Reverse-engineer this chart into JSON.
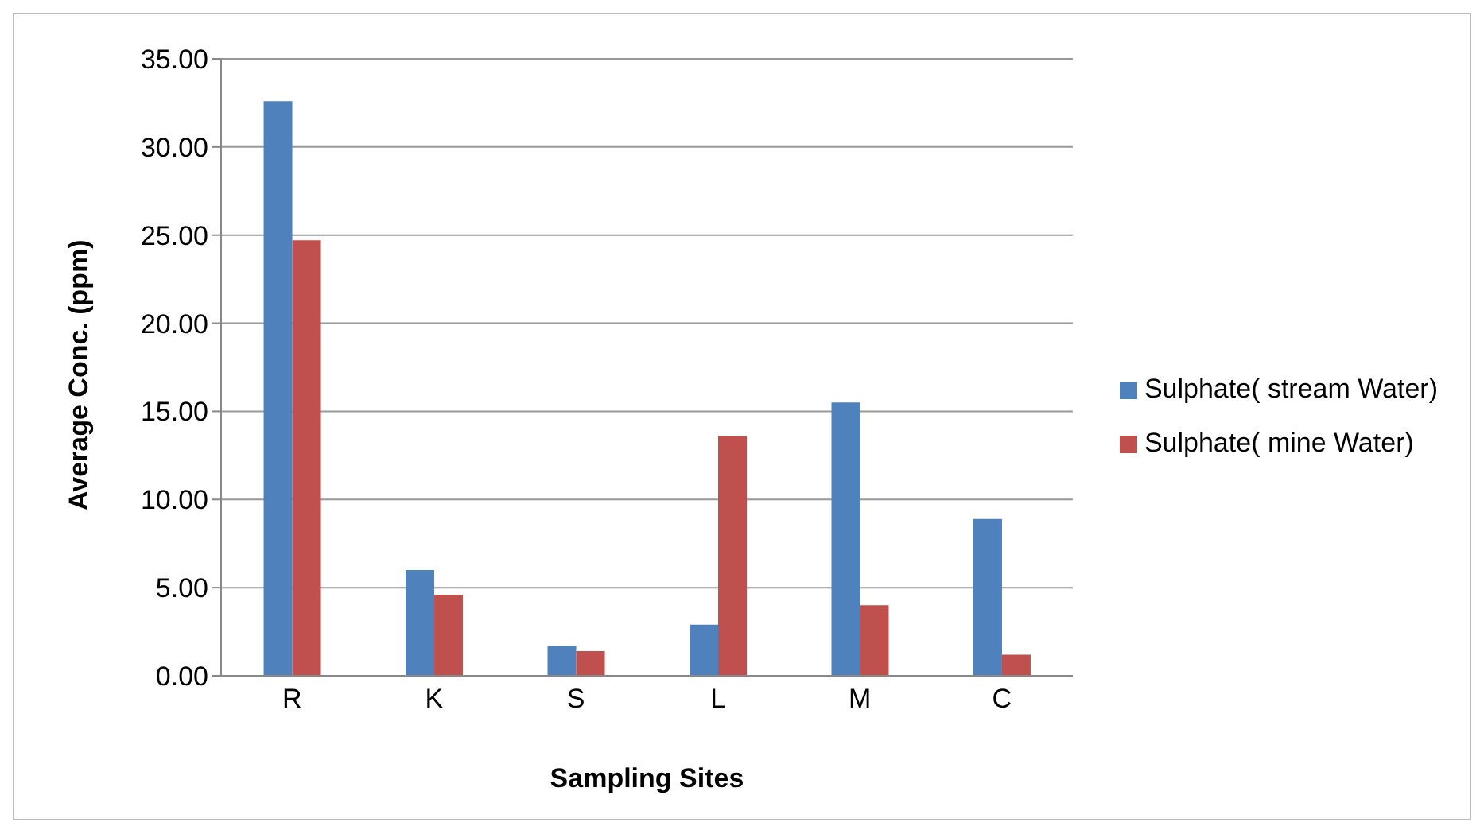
{
  "chart_data": {
    "type": "bar",
    "xlabel": "Sampling Sites",
    "ylabel": "Average Conc. (ppm)",
    "categories": [
      "R",
      "K",
      "S",
      "L",
      "M",
      "C"
    ],
    "series": [
      {
        "name": "Sulphate( stream Water)",
        "color": "#4f81bd",
        "values": [
          32.6,
          6.0,
          1.7,
          2.9,
          15.5,
          8.9
        ]
      },
      {
        "name": "Sulphate( mine Water)",
        "color": "#c0504d",
        "values": [
          24.7,
          4.6,
          1.4,
          13.6,
          4.0,
          1.2
        ]
      }
    ],
    "ylim": [
      0,
      35
    ],
    "yticks": [
      {
        "value": 0,
        "label": "0.00"
      },
      {
        "value": 5,
        "label": "5.00"
      },
      {
        "value": 10,
        "label": "10.00"
      },
      {
        "value": 15,
        "label": "15.00"
      },
      {
        "value": 20,
        "label": "20.00"
      },
      {
        "value": 25,
        "label": "25.00"
      },
      {
        "value": 30,
        "label": "30.00"
      },
      {
        "value": 35,
        "label": "35.00"
      }
    ],
    "grid": "y",
    "legend": "right"
  }
}
